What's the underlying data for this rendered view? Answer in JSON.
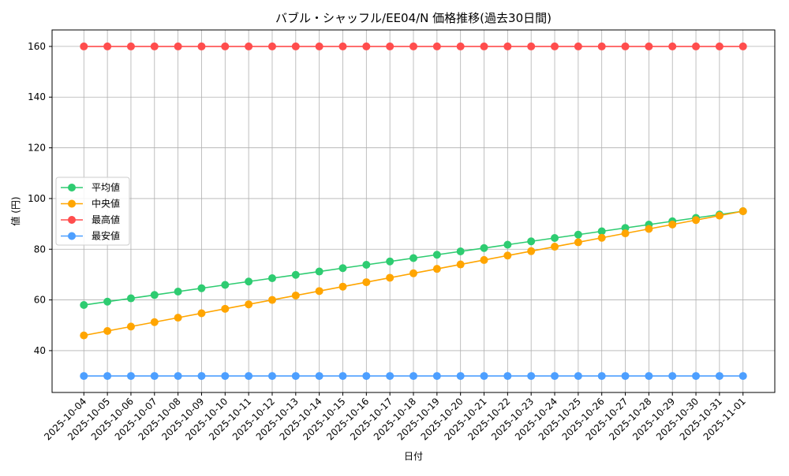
{
  "chart_data": {
    "type": "line",
    "title": "バブル・シャッフル/EE04/N 価格推移(過去30日間)",
    "xlabel": "日付",
    "ylabel": "値 (円)",
    "ylim": [
      23.5,
      166.5
    ],
    "yticks": [
      40,
      60,
      80,
      100,
      120,
      140,
      160
    ],
    "grid": true,
    "legend_position": "center-left",
    "x": [
      "2025-10-04",
      "2025-10-05",
      "2025-10-06",
      "2025-10-07",
      "2025-10-08",
      "2025-10-09",
      "2025-10-10",
      "2025-10-11",
      "2025-10-12",
      "2025-10-13",
      "2025-10-14",
      "2025-10-15",
      "2025-10-16",
      "2025-10-17",
      "2025-10-18",
      "2025-10-19",
      "2025-10-20",
      "2025-10-21",
      "2025-10-22",
      "2025-10-23",
      "2025-10-24",
      "2025-10-25",
      "2025-10-26",
      "2025-10-27",
      "2025-10-28",
      "2025-10-29",
      "2025-10-30",
      "2025-10-31",
      "2025-11-01"
    ],
    "series": [
      {
        "name": "平均値",
        "color": "#2ecc71",
        "values": [
          58,
          59.32,
          60.64,
          61.96,
          63.29,
          64.61,
          65.93,
          67.25,
          68.57,
          69.89,
          71.21,
          72.54,
          73.86,
          75.18,
          76.5,
          77.82,
          79.14,
          80.46,
          81.79,
          83.11,
          84.43,
          85.75,
          87.07,
          88.39,
          89.71,
          91.04,
          92.36,
          93.68,
          95
        ]
      },
      {
        "name": "中央値",
        "color": "#ffa500",
        "values": [
          46,
          47.75,
          49.5,
          51.25,
          53,
          54.75,
          56.5,
          58.25,
          60,
          61.75,
          63.5,
          65.25,
          67,
          68.75,
          70.5,
          72.25,
          74,
          75.75,
          77.5,
          79.25,
          81,
          82.75,
          84.5,
          86.25,
          88,
          89.75,
          91.5,
          93.25,
          95
        ]
      },
      {
        "name": "最高値",
        "color": "#ff4d4d",
        "values": [
          160,
          160,
          160,
          160,
          160,
          160,
          160,
          160,
          160,
          160,
          160,
          160,
          160,
          160,
          160,
          160,
          160,
          160,
          160,
          160,
          160,
          160,
          160,
          160,
          160,
          160,
          160,
          160,
          160
        ]
      },
      {
        "name": "最安値",
        "color": "#4d9fff",
        "values": [
          30,
          30,
          30,
          30,
          30,
          30,
          30,
          30,
          30,
          30,
          30,
          30,
          30,
          30,
          30,
          30,
          30,
          30,
          30,
          30,
          30,
          30,
          30,
          30,
          30,
          30,
          30,
          30,
          30
        ]
      }
    ]
  }
}
